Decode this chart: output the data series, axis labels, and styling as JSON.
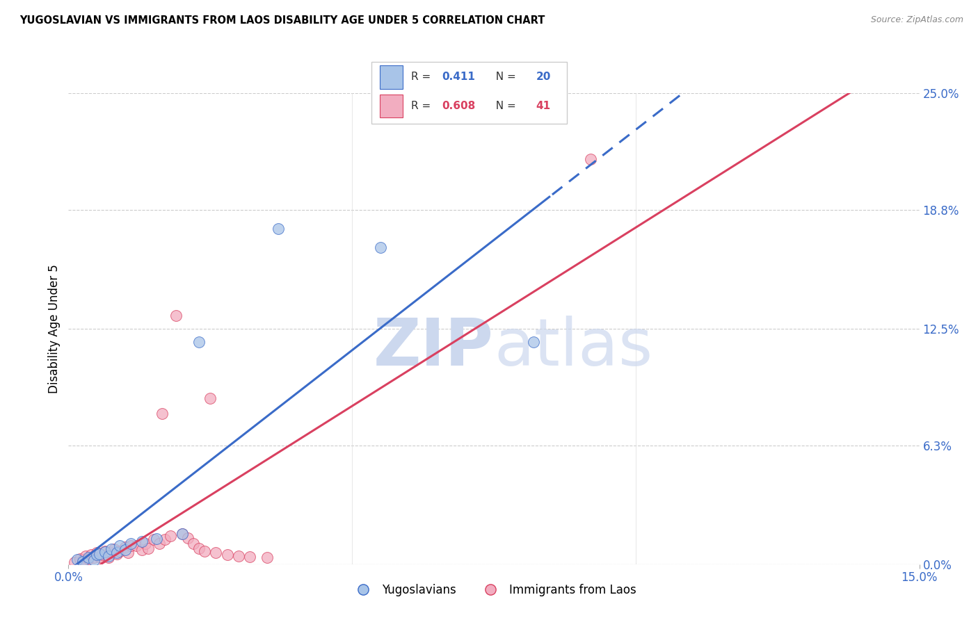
{
  "title": "YUGOSLAVIAN VS IMMIGRANTS FROM LAOS DISABILITY AGE UNDER 5 CORRELATION CHART",
  "source": "Source: ZipAtlas.com",
  "ylabel": "Disability Age Under 5",
  "ylabel_tick_vals": [
    0.0,
    6.3,
    12.5,
    18.8,
    25.0
  ],
  "xlim": [
    0.0,
    15.0
  ],
  "ylim": [
    0.0,
    25.0
  ],
  "legend_blue_R": "0.411",
  "legend_blue_N": "20",
  "legend_pink_R": "0.608",
  "legend_pink_N": "41",
  "label_blue": "Yugoslavians",
  "label_pink": "Immigrants from Laos",
  "blue_fill": "#a8c4e8",
  "pink_fill": "#f2adc0",
  "line_blue": "#3a6bc8",
  "line_pink": "#d94060",
  "text_color_blue": "#3a6bc8",
  "text_color_pink": "#d94060",
  "watermark_color": "#ccd8ee",
  "grid_color": "#cccccc",
  "tick_color": "#3a6bc8",
  "yugoslav_points": [
    [
      0.15,
      0.25
    ],
    [
      0.25,
      0.15
    ],
    [
      0.35,
      0.35
    ],
    [
      0.45,
      0.2
    ],
    [
      0.5,
      0.5
    ],
    [
      0.55,
      0.55
    ],
    [
      0.65,
      0.65
    ],
    [
      0.7,
      0.45
    ],
    [
      0.75,
      0.8
    ],
    [
      0.85,
      0.6
    ],
    [
      0.9,
      1.0
    ],
    [
      1.0,
      0.75
    ],
    [
      1.1,
      1.1
    ],
    [
      1.3,
      1.2
    ],
    [
      1.55,
      1.35
    ],
    [
      2.0,
      1.6
    ],
    [
      2.3,
      11.8
    ],
    [
      3.7,
      17.8
    ],
    [
      5.5,
      16.8
    ],
    [
      8.2,
      11.8
    ]
  ],
  "laos_points": [
    [
      0.1,
      0.1
    ],
    [
      0.2,
      0.3
    ],
    [
      0.25,
      0.2
    ],
    [
      0.3,
      0.45
    ],
    [
      0.35,
      0.3
    ],
    [
      0.4,
      0.5
    ],
    [
      0.45,
      0.35
    ],
    [
      0.5,
      0.6
    ],
    [
      0.55,
      0.4
    ],
    [
      0.6,
      0.5
    ],
    [
      0.65,
      0.7
    ],
    [
      0.7,
      0.35
    ],
    [
      0.75,
      0.6
    ],
    [
      0.8,
      0.8
    ],
    [
      0.85,
      0.55
    ],
    [
      0.9,
      0.7
    ],
    [
      1.0,
      0.9
    ],
    [
      1.05,
      0.6
    ],
    [
      1.1,
      1.0
    ],
    [
      1.2,
      1.0
    ],
    [
      1.3,
      0.75
    ],
    [
      1.35,
      1.1
    ],
    [
      1.4,
      0.85
    ],
    [
      1.5,
      1.3
    ],
    [
      1.6,
      1.1
    ],
    [
      1.65,
      8.0
    ],
    [
      1.7,
      1.3
    ],
    [
      1.8,
      1.5
    ],
    [
      1.9,
      13.2
    ],
    [
      2.0,
      1.6
    ],
    [
      2.1,
      1.4
    ],
    [
      2.2,
      1.1
    ],
    [
      2.3,
      0.85
    ],
    [
      2.4,
      0.7
    ],
    [
      2.5,
      8.8
    ],
    [
      2.6,
      0.6
    ],
    [
      2.8,
      0.5
    ],
    [
      3.0,
      0.45
    ],
    [
      3.2,
      0.4
    ],
    [
      3.5,
      0.35
    ],
    [
      9.2,
      21.5
    ]
  ],
  "blue_line_solid_end": 8.5,
  "blue_line_dash_start": 8.5
}
